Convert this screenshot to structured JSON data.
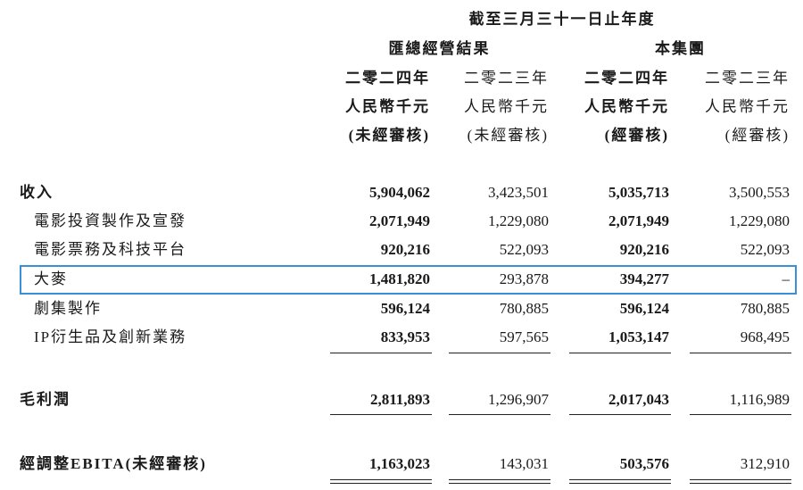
{
  "header": {
    "period": "截至三月三十一日止年度",
    "groups": [
      "匯總經營結果",
      "本集團"
    ],
    "columns": [
      {
        "year": "二零二四年",
        "currency": "人民幣千元",
        "audit": "(未經審核)"
      },
      {
        "year": "二零二三年",
        "currency": "人民幣千元",
        "audit": "(未經審核)"
      },
      {
        "year": "二零二四年",
        "currency": "人民幣千元",
        "audit": "(經審核)"
      },
      {
        "year": "二零二三年",
        "currency": "人民幣千元",
        "audit": "(經審核)"
      }
    ]
  },
  "rows": [
    {
      "label": "收入",
      "values": [
        "5,904,062",
        "3,423,501",
        "5,035,713",
        "3,500,553"
      ]
    },
    {
      "label": "電影投資製作及宣發",
      "values": [
        "2,071,949",
        "1,229,080",
        "2,071,949",
        "1,229,080"
      ]
    },
    {
      "label": "電影票務及科技平台",
      "values": [
        "920,216",
        "522,093",
        "920,216",
        "522,093"
      ]
    },
    {
      "label": "大麥",
      "values": [
        "1,481,820",
        "293,878",
        "394,277",
        "–"
      ]
    },
    {
      "label": "劇集製作",
      "values": [
        "596,124",
        "780,885",
        "596,124",
        "780,885"
      ]
    },
    {
      "label": "IP衍生品及創新業務",
      "values": [
        "833,953",
        "597,565",
        "1,053,147",
        "968,495"
      ]
    },
    {
      "label": "毛利潤",
      "values": [
        "2,811,893",
        "1,296,907",
        "2,017,043",
        "1,116,989"
      ]
    },
    {
      "label": "經調整EBITA(未經審核)",
      "values": [
        "1,163,023",
        "143,031",
        "503,576",
        "312,910"
      ]
    }
  ]
}
